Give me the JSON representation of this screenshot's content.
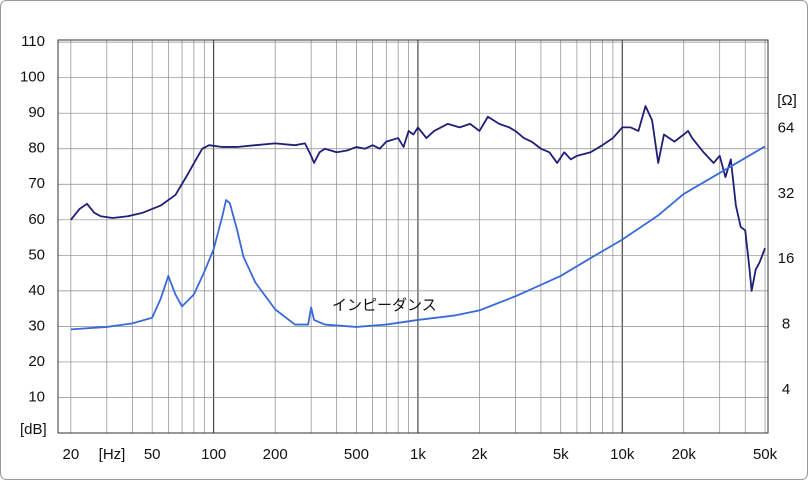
{
  "chart_data": {
    "type": "line",
    "xlabel": "[Hz]",
    "ylabel": "[dB]",
    "y2label": "[Ω]",
    "xscale": "log",
    "y2scale": "log",
    "xlim": [
      17.3,
      51700
    ],
    "ylim": [
      0,
      110.6
    ],
    "y2lim": [
      2.53,
      164
    ],
    "xticks": [
      20,
      50,
      100,
      200,
      500,
      {
        "value": 1000,
        "label": "1k"
      },
      {
        "value": 2000,
        "label": "2k"
      },
      {
        "value": 5000,
        "label": "5k"
      },
      {
        "value": 10000,
        "label": "10k"
      },
      {
        "value": 20000,
        "label": "20k"
      },
      {
        "value": 50000,
        "label": "50k"
      }
    ],
    "xgrid": [
      20,
      30,
      40,
      50,
      60,
      70,
      80,
      90,
      100,
      200,
      300,
      400,
      500,
      600,
      700,
      800,
      900,
      1000,
      2000,
      3000,
      4000,
      5000,
      6000,
      7000,
      8000,
      9000,
      10000,
      20000,
      30000,
      40000,
      50000
    ],
    "yticks": [
      10,
      20,
      30,
      40,
      50,
      60,
      70,
      80,
      90,
      100,
      110
    ],
    "y2ticks": [
      4,
      8,
      16,
      32,
      64
    ],
    "grid": true,
    "series": [
      {
        "color": "#1f1f78",
        "x": [
          20,
          22,
          24,
          26,
          28,
          32,
          38,
          45,
          55,
          65,
          75,
          82,
          88,
          95,
          110,
          130,
          160,
          200,
          250,
          280,
          300,
          310,
          330,
          350,
          400,
          450,
          500,
          550,
          600,
          650,
          700,
          800,
          850,
          900,
          950,
          1000,
          1100,
          1200,
          1400,
          1600,
          1800,
          2000,
          2200,
          2500,
          2800,
          3000,
          3300,
          3600,
          4000,
          4400,
          4800,
          5200,
          5600,
          6000,
          7000,
          8000,
          9000,
          10000,
          11000,
          12000,
          13000,
          14000,
          15000,
          16000,
          18000,
          20000,
          21000,
          22000,
          25000,
          28000,
          30000,
          32000,
          34000,
          36000,
          38000,
          40000,
          42000,
          43000,
          45000,
          47000,
          50000
        ],
        "values": [
          60,
          63,
          64.5,
          62,
          61,
          60.5,
          61,
          62,
          64,
          67,
          73,
          77,
          80,
          81,
          80.5,
          80.5,
          81,
          81.5,
          81,
          81.5,
          78,
          76,
          79,
          80,
          79,
          79.5,
          80.5,
          80,
          81,
          80,
          82,
          83,
          80.5,
          85,
          84,
          86,
          83,
          85,
          87,
          86,
          87,
          85,
          89,
          87,
          86,
          85,
          83,
          82,
          80,
          79,
          76,
          79,
          77,
          78,
          79,
          81,
          83,
          86,
          86,
          85,
          92,
          88,
          76,
          84,
          82,
          84,
          85,
          83,
          79,
          76,
          78,
          72,
          77,
          64,
          58,
          57,
          46,
          40,
          46,
          48,
          52
        ]
      },
      {
        "name": "インピーダンス",
        "color": "#3a6ad8",
        "axis": "y2",
        "x": [
          20,
          30,
          40,
          50,
          55,
          60,
          65,
          70,
          80,
          90,
          100,
          110,
          115,
          120,
          130,
          140,
          160,
          200,
          250,
          290,
          300,
          310,
          350,
          500,
          700,
          1000,
          1500,
          2000,
          3000,
          5000,
          7000,
          10000,
          15000,
          20000,
          30000,
          50000
        ],
        "values": [
          7.6,
          7.8,
          8.1,
          8.6,
          10.5,
          13.4,
          11,
          9.7,
          11,
          14,
          17.8,
          25,
          30,
          29,
          22,
          16.4,
          12.5,
          9.4,
          8,
          8,
          9.6,
          8.4,
          8,
          7.8,
          8,
          8.4,
          8.8,
          9.3,
          10.8,
          13.4,
          16.2,
          19.7,
          25.5,
          32,
          40,
          53
        ]
      }
    ]
  }
}
